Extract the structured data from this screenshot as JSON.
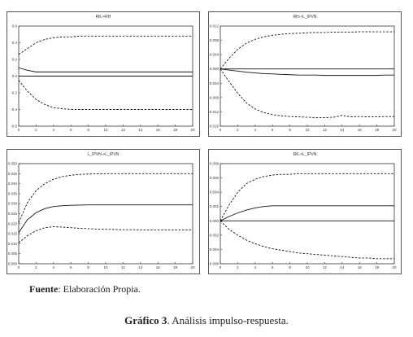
{
  "chart_data": [
    {
      "type": "line",
      "title": "RK->RH",
      "x": [
        0,
        1,
        2,
        3,
        4,
        5,
        6,
        7,
        8,
        9,
        10,
        11,
        12,
        13,
        14,
        15,
        16,
        17,
        18,
        19,
        20
      ],
      "xticks": [
        "0",
        "2",
        "4",
        "6",
        "8",
        "10",
        "12",
        "14",
        "16",
        "18",
        "20"
      ],
      "yticks": [
        "0.6",
        "0.4",
        "0.2",
        "0.0",
        "-0.2",
        "-0.4",
        "-0.6"
      ],
      "ylim": [
        -0.6,
        0.6
      ],
      "zero_line": 0,
      "series": [
        {
          "style": "solid",
          "values": [
            0.1,
            0.07,
            0.05,
            0.05,
            0.05,
            0.05,
            0.05,
            0.05,
            0.05,
            0.05,
            0.05,
            0.05,
            0.05,
            0.05,
            0.05,
            0.05,
            0.05,
            0.05,
            0.05,
            0.05,
            0.05
          ]
        },
        {
          "style": "dashed",
          "values": [
            0.26,
            0.33,
            0.4,
            0.44,
            0.46,
            0.47,
            0.47,
            0.48,
            0.48,
            0.48,
            0.48,
            0.48,
            0.48,
            0.48,
            0.48,
            0.48,
            0.48,
            0.48,
            0.48,
            0.48,
            0.48
          ]
        },
        {
          "style": "dashed",
          "values": [
            -0.05,
            -0.18,
            -0.28,
            -0.34,
            -0.38,
            -0.39,
            -0.4,
            -0.4,
            -0.4,
            -0.4,
            -0.4,
            -0.4,
            -0.4,
            -0.4,
            -0.4,
            -0.4,
            -0.4,
            -0.4,
            -0.4,
            -0.4,
            -0.4
          ]
        }
      ]
    },
    {
      "type": "line",
      "title": "RH->L_IPVN",
      "x": [
        0,
        1,
        2,
        3,
        4,
        5,
        6,
        7,
        8,
        9,
        10,
        11,
        12,
        13,
        14,
        15,
        16,
        17,
        18,
        19,
        20
      ],
      "xticks": [
        "0",
        "2",
        "4",
        "6",
        "8",
        "10",
        "12",
        "14",
        "16",
        "18",
        "20"
      ],
      "yticks": [
        "0.012",
        "0.008",
        "0.004",
        "0.000",
        "-0.004",
        "-0.008",
        "-0.012",
        "-0.016"
      ],
      "ylim": [
        -0.016,
        0.012
      ],
      "zero_line": 0,
      "series": [
        {
          "style": "solid",
          "values": [
            0.0,
            -0.0003,
            -0.0006,
            -0.0009,
            -0.0011,
            -0.0013,
            -0.0014,
            -0.0015,
            -0.0016,
            -0.0017,
            -0.0017,
            -0.0017,
            -0.0018,
            -0.0018,
            -0.0018,
            -0.0018,
            -0.0018,
            -0.0018,
            -0.0018,
            -0.0017,
            -0.0017
          ]
        },
        {
          "style": "dashed",
          "values": [
            0.0,
            0.003,
            0.0055,
            0.0072,
            0.0083,
            0.009,
            0.0094,
            0.0097,
            0.0099,
            0.01,
            0.0101,
            0.0102,
            0.0102,
            0.0103,
            0.0103,
            0.0103,
            0.0104,
            0.0104,
            0.0104,
            0.0104,
            0.0104
          ]
        },
        {
          "style": "dashed",
          "values": [
            0.0,
            -0.0035,
            -0.0068,
            -0.0095,
            -0.0112,
            -0.0122,
            -0.0128,
            -0.0131,
            -0.0133,
            -0.0134,
            -0.0135,
            -0.0136,
            -0.0136,
            -0.0135,
            -0.013,
            -0.0134,
            -0.0133,
            -0.0134,
            -0.0134,
            -0.0133,
            -0.0133
          ]
        }
      ]
    },
    {
      "type": "line",
      "title": "L_IPVN->L_IPVN",
      "x": [
        0,
        1,
        2,
        3,
        4,
        5,
        6,
        7,
        8,
        9,
        10,
        11,
        12,
        13,
        14,
        15,
        16,
        17,
        18,
        19,
        20
      ],
      "xticks": [
        "0",
        "2",
        "4",
        "6",
        "8",
        "10",
        "12",
        "14",
        "16",
        "18",
        "20"
      ],
      "yticks": [
        "0.050",
        "0.045",
        "0.040",
        "0.035",
        "0.030",
        "0.025",
        "0.020",
        "0.015",
        "0.010",
        "0.005",
        "0.000"
      ],
      "ylim": [
        0.0,
        0.05
      ],
      "zero_line": null,
      "series": [
        {
          "style": "solid",
          "values": [
            0.0155,
            0.022,
            0.0255,
            0.0275,
            0.0286,
            0.029,
            0.0292,
            0.0293,
            0.0294,
            0.0294,
            0.0294,
            0.0294,
            0.0294,
            0.0294,
            0.0294,
            0.0294,
            0.0294,
            0.0294,
            0.0294,
            0.0294,
            0.0294
          ]
        },
        {
          "style": "dashed",
          "values": [
            0.0205,
            0.0305,
            0.0365,
            0.04,
            0.0422,
            0.0435,
            0.0442,
            0.0446,
            0.0448,
            0.0449,
            0.045,
            0.045,
            0.045,
            0.045,
            0.045,
            0.045,
            0.045,
            0.045,
            0.045,
            0.045,
            0.045
          ]
        },
        {
          "style": "dashed",
          "values": [
            0.0105,
            0.014,
            0.0165,
            0.018,
            0.0185,
            0.0183,
            0.018,
            0.0177,
            0.0175,
            0.0173,
            0.0172,
            0.0171,
            0.017,
            0.017,
            0.0169,
            0.0169,
            0.0169,
            0.0169,
            0.0169,
            0.0169,
            0.0169
          ]
        }
      ]
    },
    {
      "type": "line",
      "title": "RK->L_IPVN",
      "x": [
        0,
        1,
        2,
        3,
        4,
        5,
        6,
        7,
        8,
        9,
        10,
        11,
        12,
        13,
        14,
        15,
        16,
        17,
        18,
        19,
        20
      ],
      "xticks": [
        "0",
        "2",
        "4",
        "6",
        "8",
        "10",
        "12",
        "14",
        "16",
        "18",
        "20"
      ],
      "yticks": [
        "0.008",
        "0.006",
        "0.004",
        "0.002",
        "0.000",
        "-0.002",
        "-0.004",
        "-0.006"
      ],
      "ylim": [
        -0.006,
        0.008
      ],
      "zero_line": 0,
      "series": [
        {
          "style": "solid",
          "values": [
            0.0,
            0.0006,
            0.0011,
            0.0015,
            0.0018,
            0.002,
            0.0021,
            0.0021,
            0.0021,
            0.0021,
            0.0021,
            0.0021,
            0.0021,
            0.0021,
            0.0021,
            0.0021,
            0.0021,
            0.0021,
            0.0021,
            0.0021,
            0.0021
          ]
        },
        {
          "style": "dashed",
          "values": [
            0.0,
            0.0022,
            0.004,
            0.0052,
            0.0058,
            0.0062,
            0.0064,
            0.0065,
            0.0065,
            0.0066,
            0.0066,
            0.0066,
            0.0066,
            0.0066,
            0.0066,
            0.0066,
            0.0066,
            0.0066,
            0.0066,
            0.0066,
            0.0066
          ]
        },
        {
          "style": "dashed",
          "values": [
            0.0,
            -0.0012,
            -0.002,
            -0.0027,
            -0.0032,
            -0.0036,
            -0.0039,
            -0.0041,
            -0.0043,
            -0.0045,
            -0.0046,
            -0.0047,
            -0.0048,
            -0.0049,
            -0.005,
            -0.0051,
            -0.0052,
            -0.0052,
            -0.0053,
            -0.0053,
            -0.0053
          ]
        }
      ]
    }
  ],
  "source_label": "Fuente",
  "source_text": ": Elaboración Propia.",
  "caption_label": "Gráfico 3",
  "caption_text": ". Análisis impulso-respuesta."
}
